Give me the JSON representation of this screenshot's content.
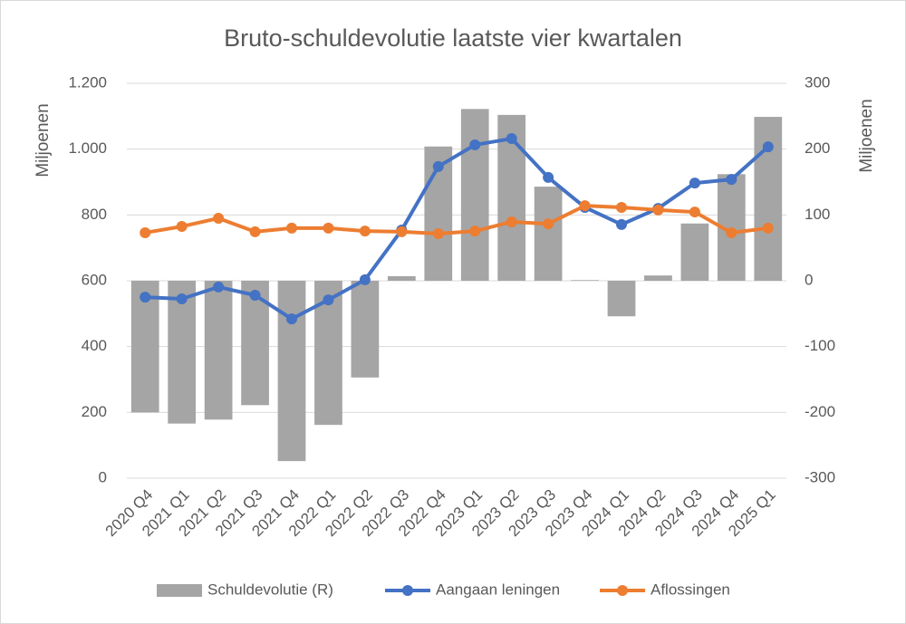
{
  "chart_data": {
    "type": "combo",
    "title": "Bruto-schuldevolutie laatste vier kwartalen",
    "ylabel": "Miljoenen",
    "y2label": "Miljoenen",
    "categories": [
      "2020 Q4",
      "2021 Q1",
      "2021 Q2",
      "2021 Q3",
      "2021 Q4",
      "2022 Q1",
      "2022 Q2",
      "2022 Q3",
      "2022 Q4",
      "2023 Q1",
      "2023 Q2",
      "2023 Q3",
      "2023 Q4",
      "2024 Q1",
      "2024 Q2",
      "2024 Q3",
      "2024 Q4",
      "2025 Q1"
    ],
    "series": [
      {
        "name": "Schuldevolutie (R)",
        "type": "bar",
        "axis": "y2",
        "color": "#a5a5a5",
        "values": [
          -200,
          -217,
          -211,
          -189,
          -274,
          -219,
          -147,
          7,
          204,
          261,
          252,
          143,
          1,
          -54,
          8,
          87,
          162,
          249
        ]
      },
      {
        "name": "Aangaan leningen",
        "type": "line",
        "color": "#4472c4",
        "values": [
          550,
          545,
          581,
          556,
          484,
          542,
          603,
          754,
          947,
          1013,
          1032,
          914,
          823,
          771,
          820,
          897,
          908,
          1007
        ]
      },
      {
        "name": "Aflossingen",
        "type": "line",
        "color": "#ed7d31",
        "values": [
          746,
          765,
          790,
          749,
          760,
          760,
          751,
          749,
          743,
          751,
          779,
          773,
          828,
          823,
          815,
          809,
          746,
          760
        ]
      }
    ],
    "ylim": [
      0,
      1200
    ],
    "yticks": [
      0,
      200,
      400,
      600,
      800,
      {
        "value": 1000,
        "label": "1.000"
      },
      {
        "value": 1200,
        "label": "1.200"
      }
    ],
    "y2lim": [
      -300,
      300
    ],
    "y2ticks": [
      -300,
      -200,
      -100,
      0,
      100,
      200,
      300
    ],
    "grid": true,
    "legend": "bottom"
  }
}
